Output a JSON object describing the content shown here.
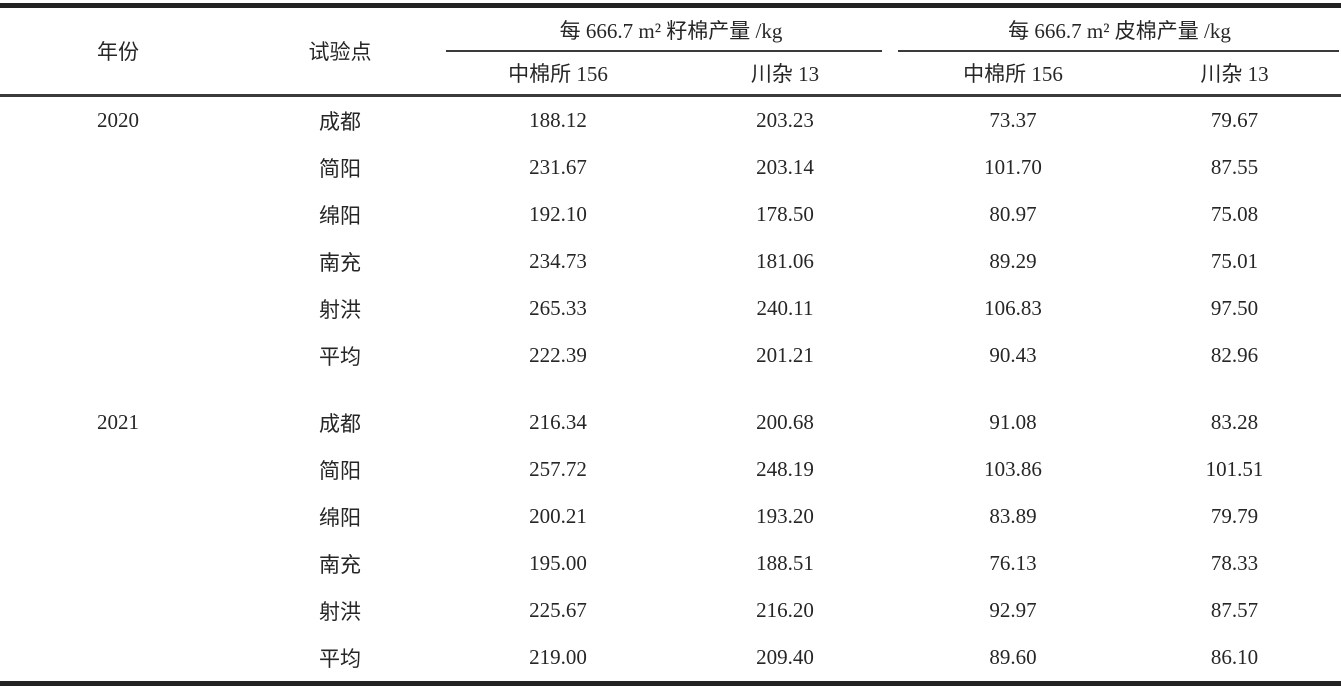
{
  "page": {
    "background": "#ffffff",
    "text_color": "#262626",
    "rule_color": "#222222"
  },
  "table": {
    "header": {
      "year": "年份",
      "site": "试验点",
      "groups": [
        {
          "label": "每 666.7 m² 籽棉产量 /kg",
          "columns": [
            "中棉所 156",
            "川杂 13"
          ]
        },
        {
          "label": "每 666.7 m² 皮棉产量 /kg",
          "columns": [
            "中棉所 156",
            "川杂 13"
          ]
        }
      ]
    },
    "sections": [
      {
        "year": "2020",
        "rows": [
          {
            "site": "成都",
            "values": [
              "188.12",
              "203.23",
              "73.37",
              "79.67"
            ]
          },
          {
            "site": "简阳",
            "values": [
              "231.67",
              "203.14",
              "101.70",
              "87.55"
            ]
          },
          {
            "site": "绵阳",
            "values": [
              "192.10",
              "178.50",
              "80.97",
              "75.08"
            ]
          },
          {
            "site": "南充",
            "values": [
              "234.73",
              "181.06",
              "89.29",
              "75.01"
            ]
          },
          {
            "site": "射洪",
            "values": [
              "265.33",
              "240.11",
              "106.83",
              "97.50"
            ]
          },
          {
            "site": "平均",
            "values": [
              "222.39",
              "201.21",
              "90.43",
              "82.96"
            ]
          }
        ]
      },
      {
        "year": "2021",
        "rows": [
          {
            "site": "成都",
            "values": [
              "216.34",
              "200.68",
              "91.08",
              "83.28"
            ]
          },
          {
            "site": "简阳",
            "values": [
              "257.72",
              "248.19",
              "103.86",
              "101.51"
            ]
          },
          {
            "site": "绵阳",
            "values": [
              "200.21",
              "193.20",
              "83.89",
              "79.79"
            ]
          },
          {
            "site": "南充",
            "values": [
              "195.00",
              "188.51",
              "76.13",
              "78.33"
            ]
          },
          {
            "site": "射洪",
            "values": [
              "225.67",
              "216.20",
              "92.97",
              "87.57"
            ]
          },
          {
            "site": "平均",
            "values": [
              "219.00",
              "209.40",
              "89.60",
              "86.10"
            ]
          }
        ]
      }
    ]
  },
  "chart_data": {
    "type": "table",
    "title": "",
    "columns": [
      "年份",
      "试验点",
      "每 666.7 m² 籽棉产量 /kg — 中棉所 156",
      "每 666.7 m² 籽棉产量 /kg — 川杂 13",
      "每 666.7 m² 皮棉产量 /kg — 中棉所 156",
      "每 666.7 m² 皮棉产量 /kg — 川杂 13"
    ],
    "rows": [
      [
        "2020",
        "成都",
        188.12,
        203.23,
        73.37,
        79.67
      ],
      [
        "2020",
        "简阳",
        231.67,
        203.14,
        101.7,
        87.55
      ],
      [
        "2020",
        "绵阳",
        192.1,
        178.5,
        80.97,
        75.08
      ],
      [
        "2020",
        "南充",
        234.73,
        181.06,
        89.29,
        75.01
      ],
      [
        "2020",
        "射洪",
        265.33,
        240.11,
        106.83,
        97.5
      ],
      [
        "2020",
        "平均",
        222.39,
        201.21,
        90.43,
        82.96
      ],
      [
        "2021",
        "成都",
        216.34,
        200.68,
        91.08,
        83.28
      ],
      [
        "2021",
        "简阳",
        257.72,
        248.19,
        103.86,
        101.51
      ],
      [
        "2021",
        "绵阳",
        200.21,
        193.2,
        83.89,
        79.79
      ],
      [
        "2021",
        "南充",
        195.0,
        188.51,
        76.13,
        78.33
      ],
      [
        "2021",
        "射洪",
        225.67,
        216.2,
        92.97,
        87.57
      ],
      [
        "2021",
        "平均",
        219.0,
        209.4,
        89.6,
        86.1
      ]
    ]
  }
}
